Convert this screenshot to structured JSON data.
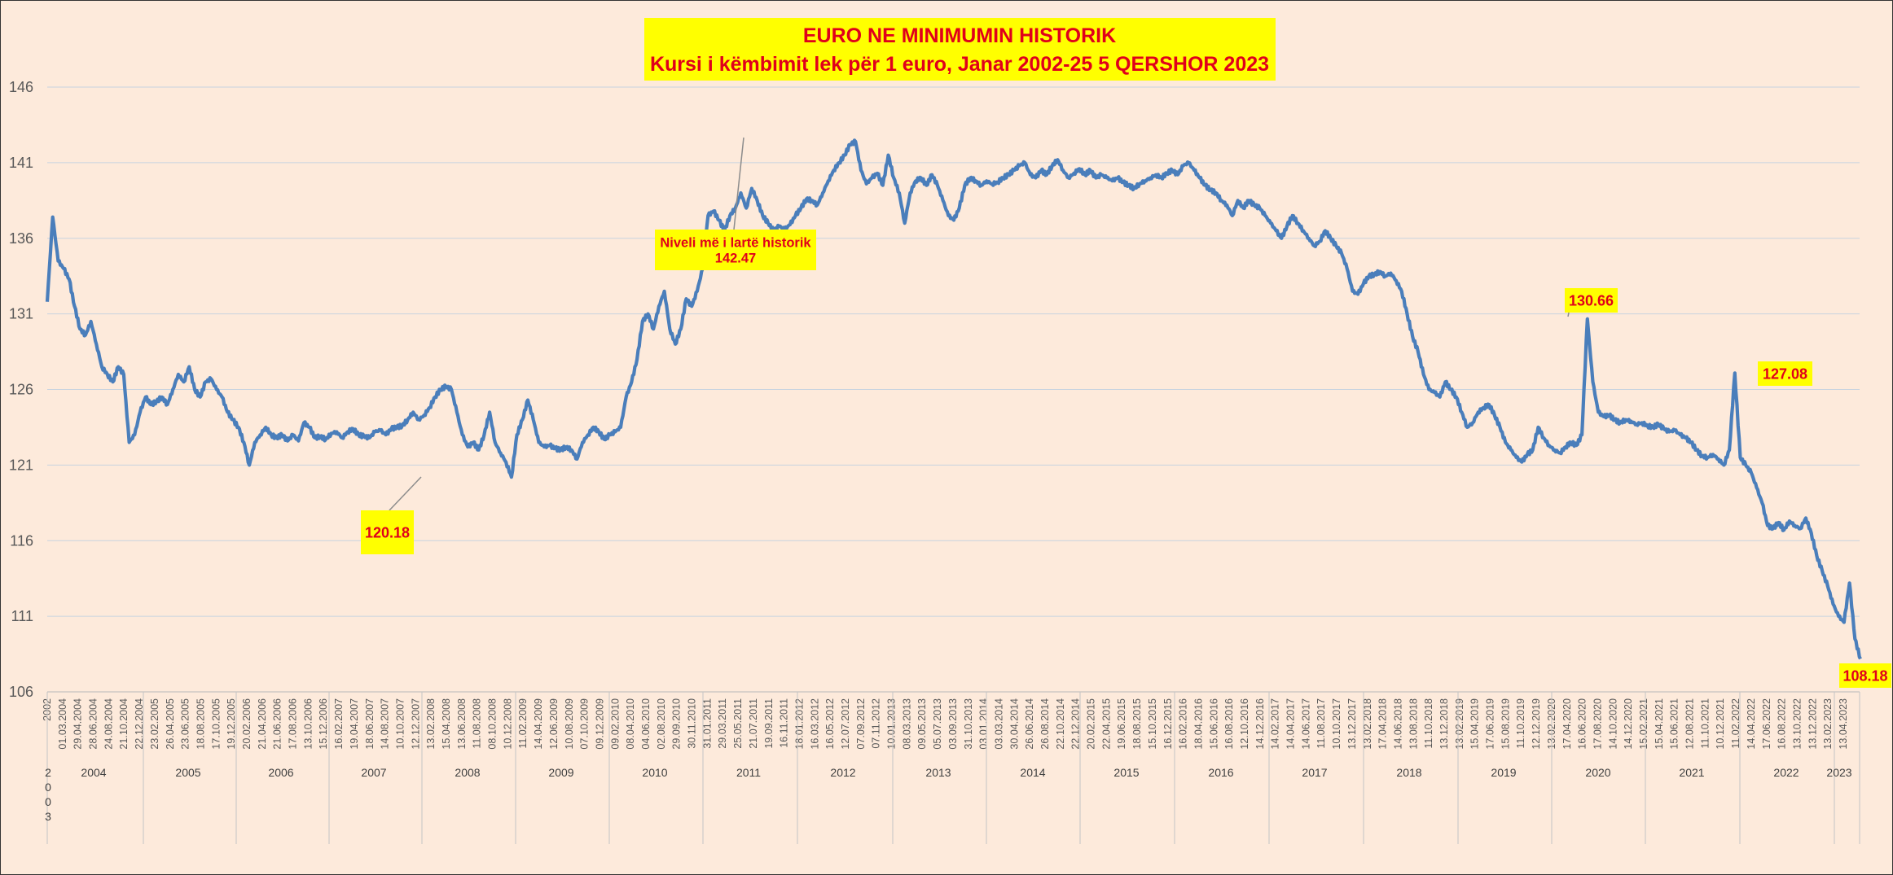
{
  "chart_data": {
    "type": "line",
    "title": "EURO NE MINIMUMIN HISTORIK",
    "subtitle": "Kursi i këmbimit lek për 1 euro, Janar 2002-25 5 QERSHOR 2023",
    "ylim": [
      106,
      146
    ],
    "yticks": [
      "106",
      "111",
      "116",
      "121",
      "126",
      "131",
      "136",
      "141",
      "146"
    ],
    "grid": true,
    "legend": "none",
    "colors": {
      "line": "#4a7ebb",
      "background": "#fdeadb",
      "label_fill": "#ffff00",
      "label_text": "#e0001b",
      "grid": "#c8d3df"
    },
    "x_date_labels": [
      "2002",
      "01.03.2004",
      "29.04.2004",
      "28.06.2004",
      "24.08.2004",
      "21.10.2004",
      "22.12.2004",
      "23.02.2005",
      "26.04.2005",
      "23.06.2005",
      "18.08.2005",
      "17.10.2005",
      "19.12.2005",
      "20.02.2006",
      "21.04.2006",
      "21.06.2006",
      "17.08.2006",
      "13.10.2006",
      "15.12.2006",
      "16.02.2007",
      "19.04.2007",
      "18.06.2007",
      "14.08.2007",
      "10.10.2007",
      "12.12.2007",
      "13.02.2008",
      "15.04.2008",
      "13.06.2008",
      "11.08.2008",
      "08.10.2008",
      "10.12.2008",
      "11.02.2009",
      "14.04.2009",
      "12.06.2009",
      "10.08.2009",
      "07.10.2009",
      "09.12.2009",
      "09.02.2010",
      "08.04.2010",
      "04.06.2010",
      "02.08.2010",
      "29.09.2010",
      "30.11.2010",
      "31.01.2011",
      "29.03.2011",
      "25.05.2011",
      "21.07.2011",
      "19.09.2011",
      "16.11.2011",
      "18.01.2012",
      "16.03.2012",
      "16.05.2012",
      "12.07.2012",
      "07.09.2012",
      "07.11.2012",
      "10.01.2013",
      "08.03.2013",
      "09.05.2013",
      "05.07.2013",
      "03.09.2013",
      "31.10.2013",
      "03.01.2014",
      "03.03.2014",
      "30.04.2014",
      "26.06.2014",
      "26.08.2014",
      "22.10.2014",
      "22.12.2014",
      "20.02.2015",
      "22.04.2015",
      "19.06.2015",
      "18.08.2015",
      "15.10.2015",
      "16.12.2015",
      "16.02.2016",
      "18.04.2016",
      "15.06.2016",
      "16.08.2016",
      "12.10.2016",
      "14.12.2016",
      "14.02.2017",
      "14.04.2017",
      "14.06.2017",
      "11.08.2017",
      "10.10.2017",
      "13.12.2017",
      "13.02.2018",
      "17.04.2018",
      "14.06.2018",
      "13.08.2018",
      "11.10.2018",
      "13.12.2018",
      "13.02.2019",
      "15.04.2019",
      "17.06.2019",
      "15.08.2019",
      "11.10.2019",
      "12.12.2019",
      "13.02.2020",
      "17.04.2020",
      "16.06.2020",
      "17.08.2020",
      "14.10.2020",
      "14.12.2020",
      "15.02.2021",
      "15.04.2021",
      "15.06.2021",
      "12.08.2021",
      "11.10.2021",
      "10.12.2021",
      "11.02.2022",
      "14.04.2022",
      "17.06.2022",
      "16.08.2022",
      "13.10.2022",
      "13.12.2022",
      "13.02.2023",
      "13.04.2023"
    ],
    "years": [
      "2004",
      "2005",
      "2006",
      "2007",
      "2008",
      "2009",
      "2010",
      "2011",
      "2012",
      "2013",
      "2014",
      "2015",
      "2016",
      "2017",
      "2018",
      "2019",
      "2020",
      "2021",
      "2022",
      "2023"
    ],
    "first_year_label": [
      "2",
      "0",
      "0",
      "3"
    ],
    "series": [
      {
        "values": [
          131.8,
          137.4,
          134.5,
          134.0,
          133.3,
          131.5,
          130.0,
          129.6,
          130.5,
          129.0,
          127.5,
          127.0,
          126.5,
          127.5,
          127.0,
          122.5,
          123.0,
          124.5,
          125.5,
          125.0,
          125.2,
          125.5,
          125.0,
          126.0,
          127.0,
          126.5,
          127.5,
          126.0,
          125.5,
          126.5,
          126.7,
          126.0,
          125.5,
          124.5,
          124.0,
          123.5,
          122.5,
          121.0,
          122.5,
          123.0,
          123.5,
          123.0,
          122.8,
          123.0,
          122.6,
          123.0,
          122.6,
          123.8,
          123.5,
          122.8,
          122.9,
          122.7,
          123.1,
          123.2,
          122.8,
          123.2,
          123.4,
          123.0,
          122.9,
          122.8,
          123.2,
          123.3,
          123.0,
          123.4,
          123.5,
          123.6,
          124.0,
          124.5,
          124.0,
          124.3,
          124.8,
          125.5,
          126.0,
          126.2,
          126.0,
          124.5,
          123.0,
          122.2,
          122.5,
          122.0,
          123.0,
          124.5,
          122.5,
          121.8,
          121.2,
          120.2,
          123.0,
          124.0,
          125.3,
          124.0,
          122.5,
          122.2,
          122.3,
          122.1,
          122.0,
          122.2,
          122.0,
          121.4,
          122.5,
          123.0,
          123.5,
          123.2,
          122.7,
          123.0,
          123.2,
          123.5,
          125.5,
          126.5,
          128.0,
          130.5,
          131.0,
          130.0,
          131.5,
          132.5,
          130.0,
          129.0,
          130.0,
          132.0,
          131.5,
          132.5,
          134.0,
          137.5,
          137.8,
          137.2,
          136.5,
          137.5,
          138.0,
          139.0,
          138.0,
          139.3,
          138.5,
          137.5,
          137.0,
          136.5,
          136.8,
          136.6,
          136.9,
          137.5,
          138.0,
          138.6,
          138.5,
          138.2,
          139.0,
          139.8,
          140.5,
          141.0,
          141.5,
          142.2,
          142.4,
          140.5,
          139.6,
          140.0,
          140.3,
          139.5,
          141.5,
          140.0,
          139.0,
          137.0,
          139.0,
          139.8,
          140.0,
          139.5,
          140.2,
          139.5,
          138.5,
          137.5,
          137.2,
          138.0,
          139.5,
          140.0,
          139.8,
          139.5,
          139.8,
          139.6,
          139.7,
          140.0,
          140.2,
          140.5,
          140.8,
          141.0,
          140.2,
          140.0,
          140.5,
          140.2,
          140.8,
          141.2,
          140.5,
          140.0,
          140.3,
          140.6,
          140.2,
          140.5,
          140.0,
          140.2,
          140.0,
          139.8,
          140.0,
          139.7,
          139.5,
          139.3,
          139.6,
          139.8,
          140.0,
          140.2,
          140.0,
          140.3,
          140.5,
          140.2,
          140.8,
          141.0,
          140.5,
          140.0,
          139.5,
          139.2,
          139.0,
          138.5,
          138.2,
          137.5,
          138.5,
          138.0,
          138.5,
          138.2,
          138.0,
          137.5,
          137.0,
          136.5,
          136.0,
          136.8,
          137.5,
          137.0,
          136.5,
          136.0,
          135.5,
          135.8,
          136.5,
          136.0,
          135.5,
          135.0,
          134.0,
          132.5,
          132.3,
          133.0,
          133.5,
          133.6,
          133.8,
          133.5,
          133.7,
          133.2,
          132.5,
          131.0,
          129.5,
          128.5,
          127.0,
          126.0,
          125.8,
          125.5,
          126.5,
          126.0,
          125.5,
          124.5,
          123.5,
          123.8,
          124.5,
          124.8,
          125.0,
          124.3,
          123.5,
          122.5,
          122.0,
          121.5,
          121.2,
          121.7,
          122.0,
          123.5,
          122.8,
          122.3,
          122.0,
          121.8,
          122.2,
          122.5,
          122.3,
          123.0,
          130.66,
          126.5,
          124.5,
          124.2,
          124.3,
          124.0,
          123.8,
          124.0,
          123.9,
          123.7,
          123.8,
          123.6,
          123.5,
          123.7,
          123.4,
          123.2,
          123.3,
          123.0,
          122.8,
          122.5,
          122.0,
          121.6,
          121.5,
          121.7,
          121.4,
          121.0,
          122.0,
          127.08,
          121.5,
          121.0,
          120.5,
          119.5,
          118.5,
          117.0,
          116.8,
          117.2,
          116.7,
          117.3,
          117.0,
          116.8,
          117.5,
          116.5,
          115.0,
          114.0,
          113.0,
          111.8,
          111.0,
          110.6,
          113.2,
          109.5,
          108.18
        ],
        "color": "#4a7ebb"
      }
    ],
    "annotations": [
      {
        "lines": [
          "Niveli më i lartë historik",
          "142.47"
        ],
        "value": 142.47
      },
      {
        "lines": [
          "120.18"
        ],
        "value": 120.18
      },
      {
        "lines": [
          "130.66"
        ],
        "value": 130.66
      },
      {
        "lines": [
          "127.08"
        ],
        "value": 127.08
      },
      {
        "lines": [
          "108.18"
        ],
        "value": 108.18
      }
    ]
  }
}
